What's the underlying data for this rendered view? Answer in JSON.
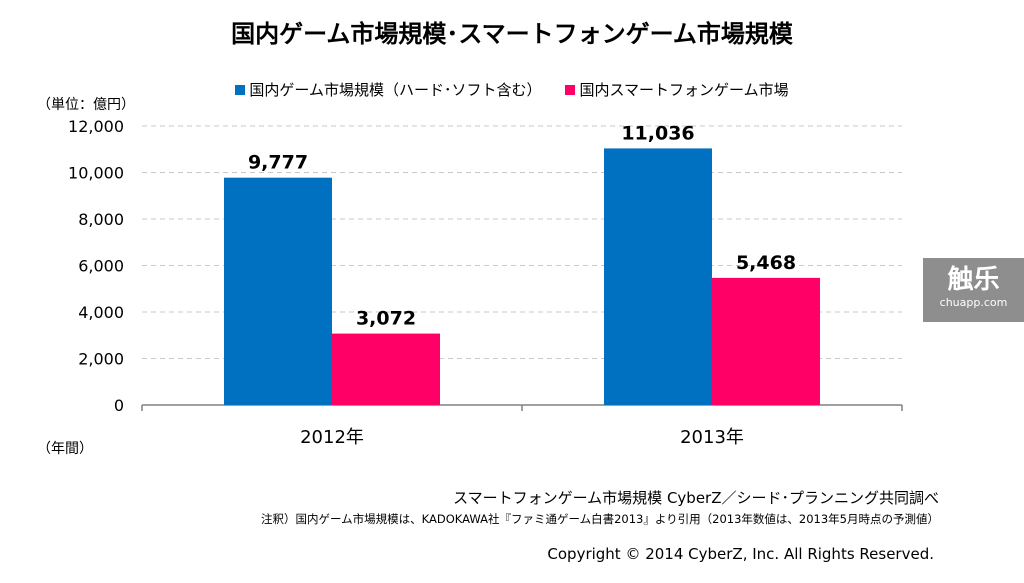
{
  "chart_data": {
    "type": "bar",
    "title": "国内ゲーム市場規模･スマートフォンゲーム市場規模",
    "categories": [
      "2012年",
      "2013年"
    ],
    "series": [
      {
        "name": "国内ゲーム市場規模（ハード･ソフト含む）",
        "color": "#0070c0",
        "values": [
          9777,
          11036
        ],
        "labels": [
          "9,777",
          "11,036"
        ]
      },
      {
        "name": "国内スマートフォンゲーム市場",
        "color": "#ff0066",
        "values": [
          3072,
          5468
        ],
        "labels": [
          "3,072",
          "5,468"
        ]
      }
    ],
    "ylim": [
      0,
      12000
    ],
    "yticks": [
      0,
      2000,
      4000,
      6000,
      8000,
      10000,
      12000
    ],
    "ytick_labels": [
      "0",
      "2,000",
      "4,000",
      "6,000",
      "8,000",
      "10,000",
      "12,000"
    ],
    "ylabel": "（単位：億円）",
    "xlabel": "（年間）",
    "grid": true,
    "legend_position": "top-center"
  },
  "footer": {
    "source": "スマートフォンゲーム市場規模  CyberZ／シード･プランニング共同調べ",
    "note": "注釈）国内ゲーム市場規模は、KADOKAWA社『ファミ通ゲーム白書2013』より引用（2013年数値は、2013年5月時点の予測値）",
    "copyright": "Copyright © 2014 CyberZ, Inc.  All Rights Reserved."
  },
  "watermark": {
    "main": "触乐",
    "sub": "chuapp.com"
  }
}
